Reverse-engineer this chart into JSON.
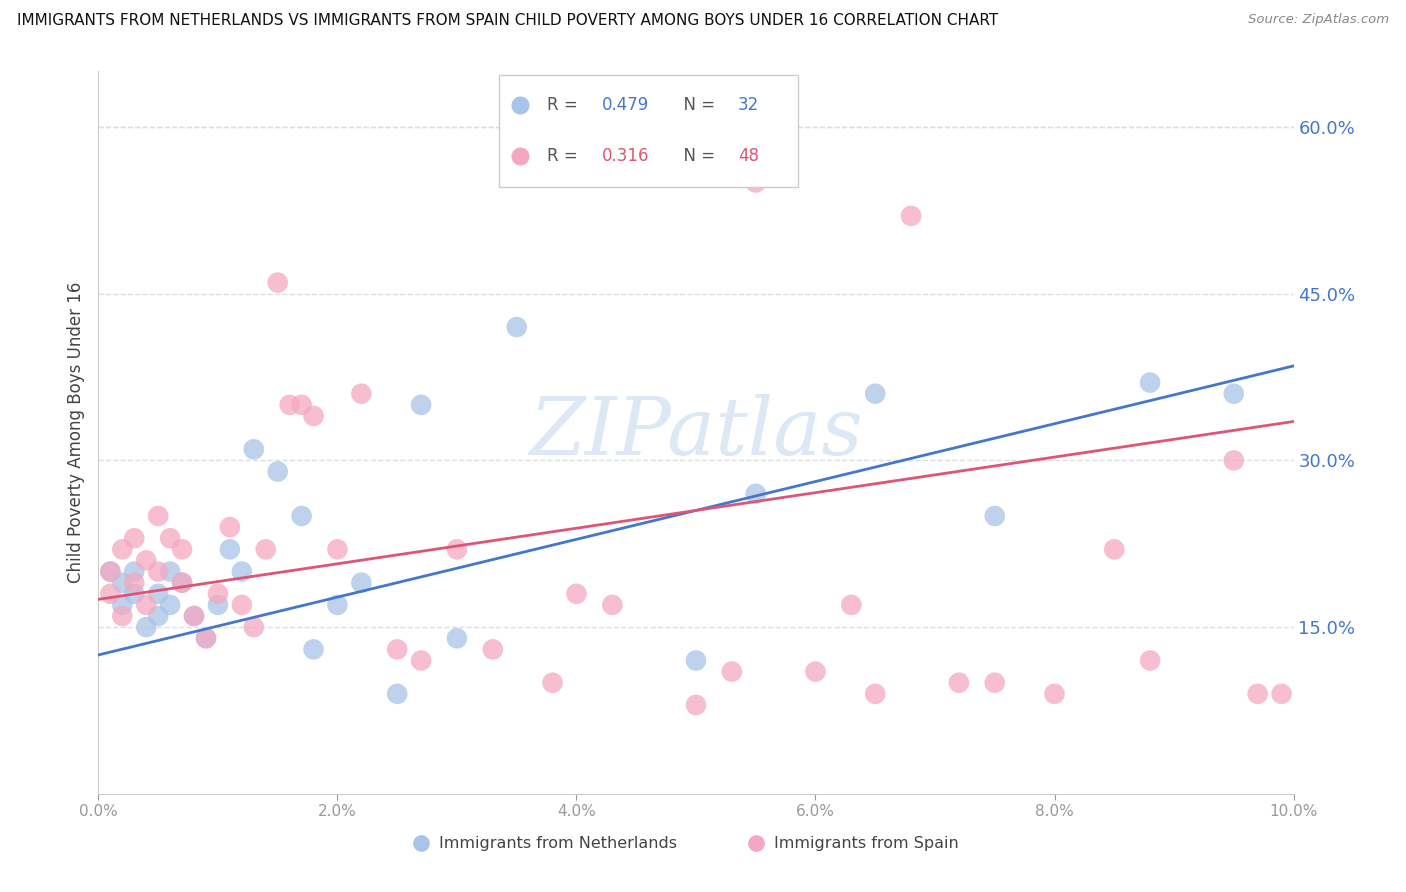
{
  "title": "IMMIGRANTS FROM NETHERLANDS VS IMMIGRANTS FROM SPAIN CHILD POVERTY AMONG BOYS UNDER 16 CORRELATION CHART",
  "source": "Source: ZipAtlas.com",
  "ylabel": "Child Poverty Among Boys Under 16",
  "xlim": [
    0.0,
    0.1
  ],
  "ylim": [
    0.0,
    0.65
  ],
  "yticks_right": [
    0.15,
    0.3,
    0.45,
    0.6
  ],
  "xticks": [
    0.0,
    0.02,
    0.04,
    0.06,
    0.08,
    0.1
  ],
  "watermark": "ZIPatlas",
  "blue_R": 0.479,
  "blue_N": 32,
  "pink_R": 0.316,
  "pink_N": 48,
  "blue_color": "#a8c4e8",
  "pink_color": "#f4a8c0",
  "blue_line_color": "#4477cc",
  "pink_line_color": "#dd5577",
  "blue_line_x0": 0.0,
  "blue_line_y0": 0.125,
  "blue_line_x1": 0.1,
  "blue_line_y1": 0.385,
  "pink_line_x0": 0.0,
  "pink_line_y0": 0.175,
  "pink_line_x1": 0.1,
  "pink_line_y1": 0.335,
  "blue_x": [
    0.001,
    0.002,
    0.002,
    0.003,
    0.003,
    0.004,
    0.005,
    0.005,
    0.006,
    0.006,
    0.007,
    0.008,
    0.009,
    0.01,
    0.011,
    0.012,
    0.013,
    0.015,
    0.017,
    0.018,
    0.02,
    0.022,
    0.025,
    0.027,
    0.03,
    0.035,
    0.05,
    0.055,
    0.065,
    0.075,
    0.088,
    0.095
  ],
  "blue_y": [
    0.2,
    0.19,
    0.17,
    0.18,
    0.2,
    0.15,
    0.18,
    0.16,
    0.2,
    0.17,
    0.19,
    0.16,
    0.14,
    0.17,
    0.22,
    0.2,
    0.31,
    0.29,
    0.25,
    0.13,
    0.17,
    0.19,
    0.09,
    0.35,
    0.14,
    0.42,
    0.12,
    0.27,
    0.36,
    0.25,
    0.37,
    0.36
  ],
  "pink_x": [
    0.001,
    0.001,
    0.002,
    0.002,
    0.003,
    0.003,
    0.004,
    0.004,
    0.005,
    0.005,
    0.006,
    0.007,
    0.007,
    0.008,
    0.009,
    0.01,
    0.011,
    0.012,
    0.013,
    0.014,
    0.015,
    0.016,
    0.017,
    0.018,
    0.02,
    0.022,
    0.025,
    0.027,
    0.03,
    0.033,
    0.038,
    0.04,
    0.043,
    0.05,
    0.053,
    0.06,
    0.063,
    0.065,
    0.068,
    0.072,
    0.075,
    0.08,
    0.085,
    0.088,
    0.055,
    0.095,
    0.097,
    0.099
  ],
  "pink_y": [
    0.2,
    0.18,
    0.22,
    0.16,
    0.19,
    0.23,
    0.21,
    0.17,
    0.25,
    0.2,
    0.23,
    0.22,
    0.19,
    0.16,
    0.14,
    0.18,
    0.24,
    0.17,
    0.15,
    0.22,
    0.46,
    0.35,
    0.35,
    0.34,
    0.22,
    0.36,
    0.13,
    0.12,
    0.22,
    0.13,
    0.1,
    0.18,
    0.17,
    0.08,
    0.11,
    0.11,
    0.17,
    0.09,
    0.52,
    0.1,
    0.1,
    0.09,
    0.22,
    0.12,
    0.55,
    0.3,
    0.09,
    0.09
  ]
}
